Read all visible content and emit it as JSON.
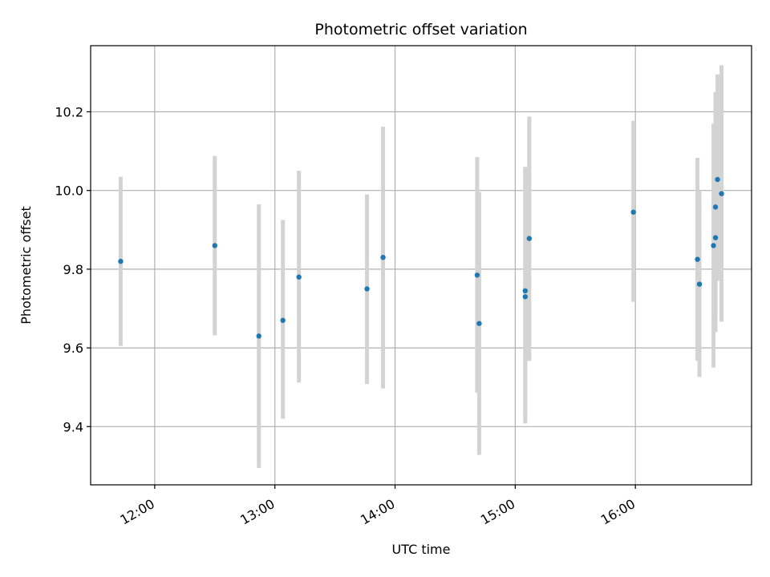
{
  "chart_data": {
    "type": "scatter",
    "title": "Photometric offset variation",
    "xlabel": "UTC time",
    "ylabel": "Photometric offset",
    "x_tick_labels": [
      "12:00",
      "13:00",
      "14:00",
      "15:00",
      "16:00"
    ],
    "y_tick_labels": [
      "9.4",
      "9.6",
      "9.8",
      "10.0",
      "10.2"
    ],
    "xlim": [
      "11:28",
      "16:58"
    ],
    "ylim": [
      9.252,
      10.368
    ],
    "grid": true,
    "colors": {
      "points": "#1f77b4",
      "error_bars": "#d3d3d3",
      "grid": "#b0b0b0"
    },
    "series": [
      {
        "points": [
          {
            "x": "11:43",
            "y": 9.82,
            "yerr_low": 9.605,
            "yerr_high": 10.035
          },
          {
            "x": "12:30",
            "y": 9.86,
            "yerr_low": 9.632,
            "yerr_high": 10.088
          },
          {
            "x": "12:52",
            "y": 9.63,
            "yerr_low": 9.295,
            "yerr_high": 9.965
          },
          {
            "x": "13:04",
            "y": 9.67,
            "yerr_low": 9.42,
            "yerr_high": 9.925
          },
          {
            "x": "13:12",
            "y": 9.78,
            "yerr_low": 9.512,
            "yerr_high": 10.05
          },
          {
            "x": "13:46",
            "y": 9.75,
            "yerr_low": 9.508,
            "yerr_high": 9.99
          },
          {
            "x": "13:54",
            "y": 9.83,
            "yerr_low": 9.497,
            "yerr_high": 10.162
          },
          {
            "x": "14:41",
            "y": 9.785,
            "yerr_low": 9.486,
            "yerr_high": 10.085
          },
          {
            "x": "14:42",
            "y": 9.662,
            "yerr_low": 9.328,
            "yerr_high": 9.996
          },
          {
            "x": "15:05",
            "y": 9.73,
            "yerr_low": 9.408,
            "yerr_high": 10.055
          },
          {
            "x": "15:05",
            "y": 9.745,
            "yerr_low": 9.43,
            "yerr_high": 10.06
          },
          {
            "x": "15:07",
            "y": 9.878,
            "yerr_low": 9.567,
            "yerr_high": 10.188
          },
          {
            "x": "15:59",
            "y": 9.945,
            "yerr_low": 9.717,
            "yerr_high": 10.177
          },
          {
            "x": "16:31",
            "y": 9.825,
            "yerr_low": 9.567,
            "yerr_high": 10.083
          },
          {
            "x": "16:32",
            "y": 9.762,
            "yerr_low": 9.526,
            "yerr_high": 9.998
          },
          {
            "x": "16:39",
            "y": 9.86,
            "yerr_low": 9.55,
            "yerr_high": 10.17
          },
          {
            "x": "16:40",
            "y": 9.88,
            "yerr_low": 9.64,
            "yerr_high": 10.235
          },
          {
            "x": "16:40",
            "y": 9.958,
            "yerr_low": 9.68,
            "yerr_high": 10.25
          },
          {
            "x": "16:41",
            "y": 10.028,
            "yerr_low": 9.77,
            "yerr_high": 10.295
          },
          {
            "x": "16:43",
            "y": 9.992,
            "yerr_low": 9.667,
            "yerr_high": 10.318
          }
        ]
      }
    ]
  }
}
